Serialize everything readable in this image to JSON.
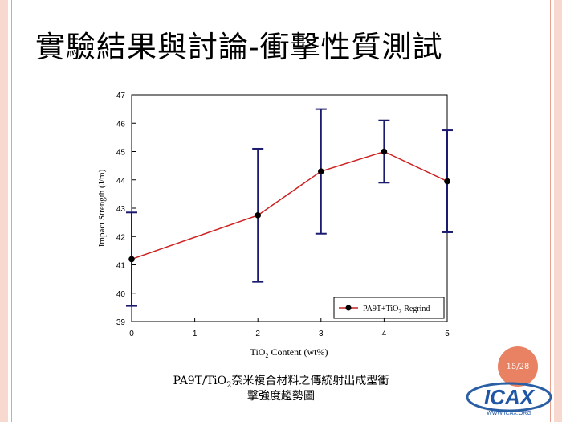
{
  "slide": {
    "title": "實驗結果與討論-衝擊性質測試",
    "page_number": "15/28",
    "caption_line1_pre": "PA9T/TiO",
    "caption_line1_sub": "2",
    "caption_line1_post": "奈米複合材料之傳統射出成型衝",
    "caption_line2": "擊強度趨勢圖",
    "logo_text": "ICAX",
    "logo_url": "WWW.ICAX.ORG"
  },
  "colors": {
    "line": "#cc2222",
    "errorbar": "#1a1a6e",
    "marker": "#000000",
    "badge": "#e98263"
  },
  "chart_data": {
    "type": "line",
    "title": "",
    "xlabel": "TiO2 Content (wt%)",
    "ylabel": "Impact Strength (J/m)",
    "xlim": [
      0,
      5
    ],
    "ylim": [
      39,
      47
    ],
    "xticks": [
      "0",
      "1",
      "2",
      "3",
      "4",
      "5"
    ],
    "yticks": [
      "39",
      "40",
      "41",
      "42",
      "43",
      "44",
      "45",
      "46",
      "47"
    ],
    "legend_position": "bottom-right",
    "series": [
      {
        "name": "PA9T+TiO2-Regrind",
        "x": [
          0,
          2,
          3,
          4,
          5
        ],
        "y": [
          41.2,
          42.75,
          44.3,
          45.0,
          43.95
        ],
        "err_low": [
          39.55,
          40.4,
          42.1,
          43.9,
          42.15
        ],
        "err_high": [
          42.85,
          45.1,
          46.5,
          46.1,
          45.75
        ]
      }
    ]
  }
}
